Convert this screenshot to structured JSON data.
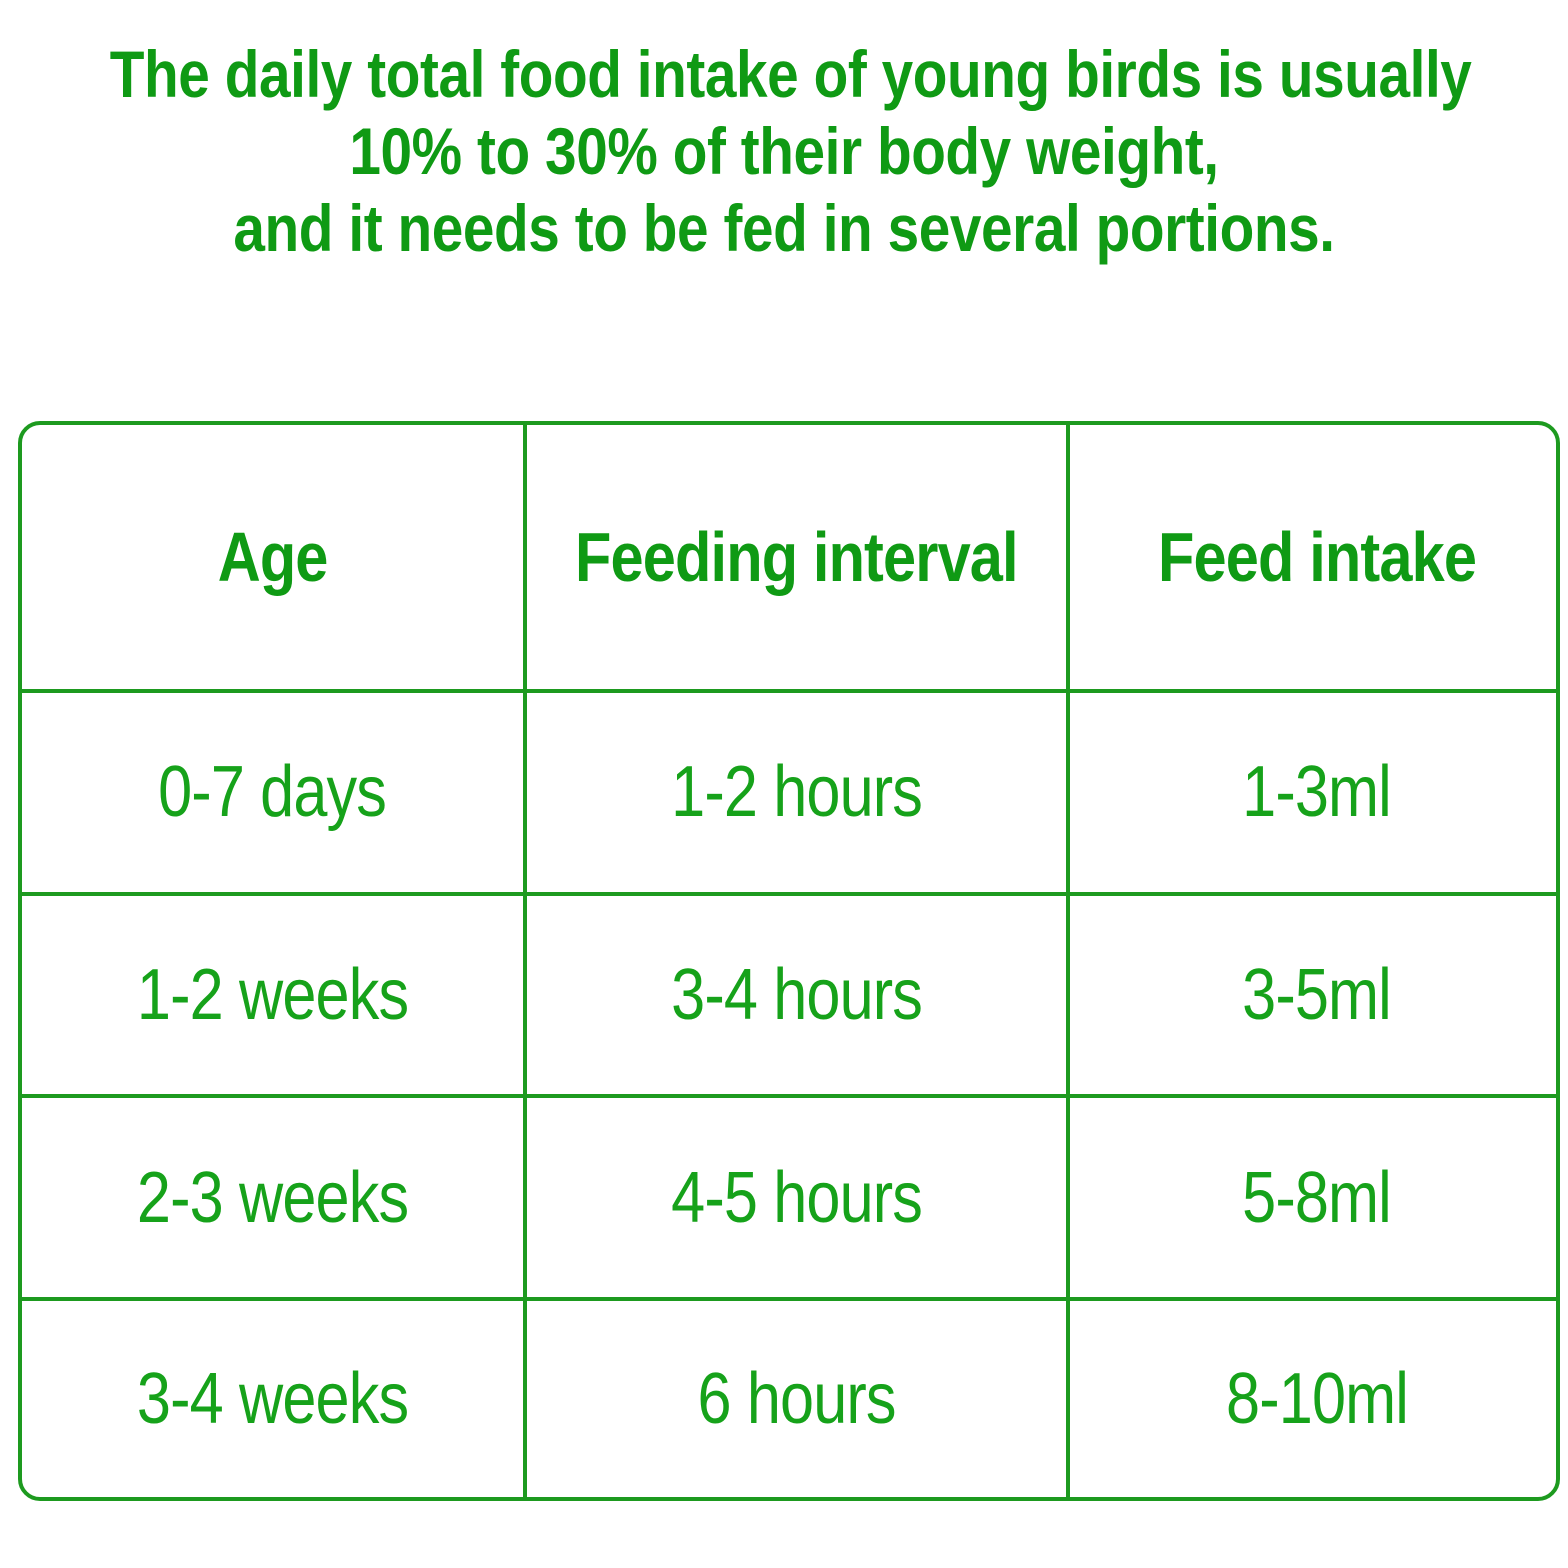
{
  "headline": {
    "line1": "The daily total food intake of young birds is usually",
    "line2": "10% to 30% of their body weight,",
    "line3": "and it needs to be fed in several portions."
  },
  "table": {
    "headers": {
      "age": "Age",
      "interval": "Feeding interval",
      "intake": "Feed intake"
    },
    "rows": [
      {
        "age": "0-7 days",
        "interval": "1-2 hours",
        "intake": "1-3ml"
      },
      {
        "age": "1-2 weeks",
        "interval": "3-4 hours",
        "intake": "3-5ml"
      },
      {
        "age": "2-3 weeks",
        "interval": "4-5 hours",
        "intake": "5-8ml"
      },
      {
        "age": "3-4 weeks",
        "interval": "6 hours",
        "intake": "8-10ml"
      }
    ]
  },
  "colors": {
    "text_green": "#0f9a14",
    "border_green": "#1d9a1f",
    "background": "#ffffff"
  }
}
